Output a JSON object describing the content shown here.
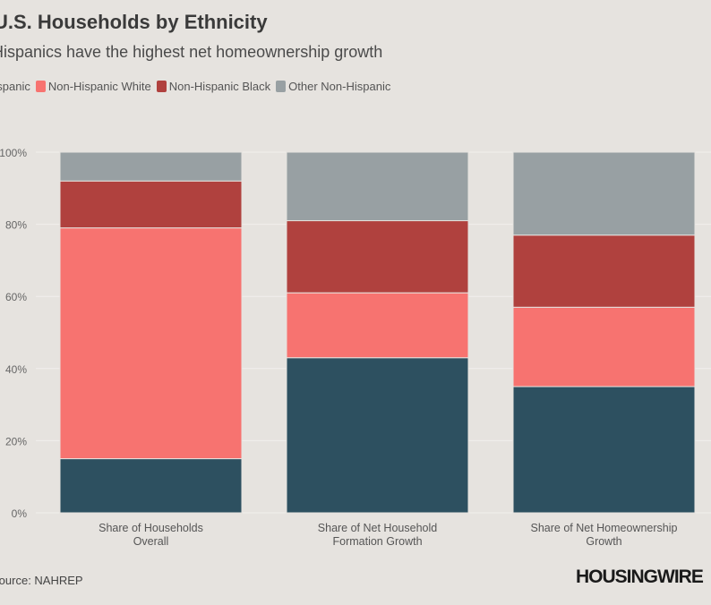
{
  "chart_data": {
    "type": "bar",
    "stacked": true,
    "title": "U.S. Households by Ethnicity",
    "subtitle": "Hispanics have the highest net homeownership growth",
    "categories": [
      "Share of Households Overall",
      "Share of Net Household Formation Growth",
      "Share of Net Homeownership Growth"
    ],
    "series": [
      {
        "name": "Hispanic",
        "color": "#2d5060",
        "values": [
          15,
          43,
          35
        ]
      },
      {
        "name": "Non-Hispanic White",
        "color": "#f77370",
        "values": [
          64,
          18,
          22
        ]
      },
      {
        "name": "Non-Hispanic Black",
        "color": "#b0413e",
        "values": [
          13,
          20,
          20
        ]
      },
      {
        "name": "Other Non-Hispanic",
        "color": "#98a0a3",
        "values": [
          8,
          19,
          23
        ]
      }
    ],
    "yticks": [
      "0%",
      "20%",
      "40%",
      "60%",
      "80%",
      "100%"
    ],
    "ylim": [
      0,
      100
    ],
    "grid": true,
    "legend": "top-left",
    "source": "Source: NAHREP",
    "logo": "HOUSINGWIRE"
  }
}
